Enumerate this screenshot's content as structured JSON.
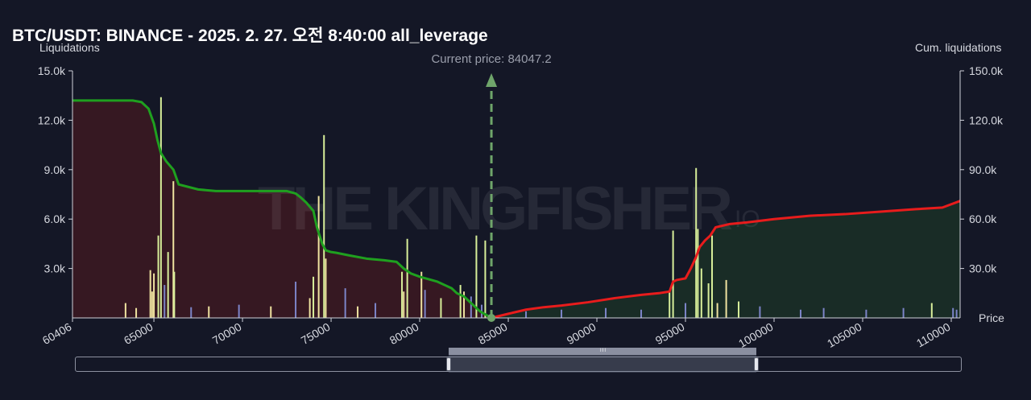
{
  "chart_title": "BTC/USDT: BINANCE - 2025. 2. 27. 오전 8:40:00 all_leverage",
  "watermark": "THE KINGFISHER",
  "watermark_suffix": "IO",
  "colors": {
    "background": "#141726",
    "cum_short": "#1fa01f",
    "cum_long": "#e81c1c",
    "area_left": "#3a1822",
    "area_right": "#1a2f27",
    "bars_light": "#d8ef9a",
    "bars_yellow": "#efe3a0",
    "bars_purple": "#7c84c8",
    "current_price_line": "#6fa56a"
  },
  "chart_data": {
    "type": "bar+line",
    "xlabel": "Price",
    "ylabel_left": "Liquidations",
    "ylabel_right": "Cum. liquidations",
    "xlim": [
      60406,
      110500
    ],
    "ylim_left": [
      0,
      15000
    ],
    "ylim_right": [
      0,
      150000
    ],
    "x_tick_labels": [
      "60406",
      "65000",
      "70000",
      "75000",
      "80000",
      "85000",
      "90000",
      "95000",
      "100000",
      "105000",
      "110000"
    ],
    "x_ticks": [
      60406,
      65000,
      70000,
      75000,
      80000,
      85000,
      90000,
      95000,
      100000,
      105000,
      110000
    ],
    "y_left_tick_labels": [
      "3.0k",
      "6.0k",
      "9.0k",
      "12.0k",
      "15.0k"
    ],
    "y_left_ticks": [
      3000,
      6000,
      9000,
      12000,
      15000
    ],
    "y_right_tick_labels": [
      "30.0k",
      "60.0k",
      "90.0k",
      "120.0k",
      "150.0k"
    ],
    "y_right_ticks": [
      30000,
      60000,
      90000,
      120000,
      150000
    ],
    "current_price": 84047.2,
    "current_price_label": "Current price: 84047.2",
    "grid": false,
    "bars": [
      {
        "x": 65400,
        "y": 13400,
        "c": "light"
      },
      {
        "x": 65250,
        "y": 5000,
        "c": "light"
      },
      {
        "x": 64800,
        "y": 2900,
        "c": "yellow"
      },
      {
        "x": 65000,
        "y": 2700,
        "c": "yellow"
      },
      {
        "x": 64900,
        "y": 1600,
        "c": "yellow"
      },
      {
        "x": 65600,
        "y": 2000,
        "c": "purple"
      },
      {
        "x": 66100,
        "y": 8300,
        "c": "yellow"
      },
      {
        "x": 66150,
        "y": 2800,
        "c": "light"
      },
      {
        "x": 65800,
        "y": 4000,
        "c": "light"
      },
      {
        "x": 63400,
        "y": 900,
        "c": "yellow"
      },
      {
        "x": 64000,
        "y": 600,
        "c": "yellow"
      },
      {
        "x": 67100,
        "y": 650,
        "c": "purple"
      },
      {
        "x": 68100,
        "y": 700,
        "c": "yellow"
      },
      {
        "x": 69800,
        "y": 800,
        "c": "purple"
      },
      {
        "x": 71600,
        "y": 700,
        "c": "yellow"
      },
      {
        "x": 73000,
        "y": 2200,
        "c": "purple"
      },
      {
        "x": 74000,
        "y": 2500,
        "c": "light"
      },
      {
        "x": 74300,
        "y": 7400,
        "c": "yellow"
      },
      {
        "x": 74600,
        "y": 11100,
        "c": "light"
      },
      {
        "x": 74700,
        "y": 3600,
        "c": "yellow"
      },
      {
        "x": 73800,
        "y": 1200,
        "c": "yellow"
      },
      {
        "x": 75800,
        "y": 1800,
        "c": "purple"
      },
      {
        "x": 76500,
        "y": 700,
        "c": "yellow"
      },
      {
        "x": 77500,
        "y": 900,
        "c": "purple"
      },
      {
        "x": 79000,
        "y": 2800,
        "c": "light"
      },
      {
        "x": 79300,
        "y": 4800,
        "c": "light"
      },
      {
        "x": 79100,
        "y": 1600,
        "c": "yellow"
      },
      {
        "x": 80100,
        "y": 2800,
        "c": "yellow"
      },
      {
        "x": 80300,
        "y": 1700,
        "c": "purple"
      },
      {
        "x": 81200,
        "y": 1200,
        "c": "light"
      },
      {
        "x": 82300,
        "y": 2000,
        "c": "light"
      },
      {
        "x": 82500,
        "y": 1600,
        "c": "yellow"
      },
      {
        "x": 83200,
        "y": 5000,
        "c": "light"
      },
      {
        "x": 82900,
        "y": 1300,
        "c": "purple"
      },
      {
        "x": 83700,
        "y": 4700,
        "c": "light"
      },
      {
        "x": 83500,
        "y": 800,
        "c": "purple"
      },
      {
        "x": 86000,
        "y": 400,
        "c": "purple"
      },
      {
        "x": 88000,
        "y": 500,
        "c": "purple"
      },
      {
        "x": 90500,
        "y": 600,
        "c": "purple"
      },
      {
        "x": 92500,
        "y": 500,
        "c": "purple"
      },
      {
        "x": 94300,
        "y": 5300,
        "c": "light"
      },
      {
        "x": 94100,
        "y": 1600,
        "c": "light"
      },
      {
        "x": 95000,
        "y": 900,
        "c": "purple"
      },
      {
        "x": 95600,
        "y": 9100,
        "c": "light"
      },
      {
        "x": 95700,
        "y": 5400,
        "c": "light"
      },
      {
        "x": 95900,
        "y": 3000,
        "c": "light"
      },
      {
        "x": 96300,
        "y": 2100,
        "c": "light"
      },
      {
        "x": 96500,
        "y": 5000,
        "c": "light"
      },
      {
        "x": 97300,
        "y": 2300,
        "c": "yellow"
      },
      {
        "x": 96800,
        "y": 900,
        "c": "yellow"
      },
      {
        "x": 98000,
        "y": 1000,
        "c": "light"
      },
      {
        "x": 99200,
        "y": 700,
        "c": "purple"
      },
      {
        "x": 101500,
        "y": 500,
        "c": "purple"
      },
      {
        "x": 102800,
        "y": 600,
        "c": "purple"
      },
      {
        "x": 105200,
        "y": 500,
        "c": "purple"
      },
      {
        "x": 107300,
        "y": 600,
        "c": "purple"
      },
      {
        "x": 108900,
        "y": 900,
        "c": "light"
      },
      {
        "x": 110100,
        "y": 600,
        "c": "purple"
      },
      {
        "x": 110300,
        "y": 500,
        "c": "purple"
      }
    ],
    "series": [
      {
        "name": "",
        "side": "short",
        "x": [
          60406,
          63800,
          64300,
          64700,
          65000,
          65200,
          65400,
          65700,
          66100,
          66400,
          67500,
          68500,
          70000,
          72500,
          73000,
          73300,
          73600,
          74000,
          74200,
          74500,
          74700,
          75000,
          75300,
          76000,
          77000,
          78000,
          78700,
          79100,
          79500,
          80000,
          81000,
          81400,
          81800,
          82100,
          82500,
          83000,
          83400,
          84047
        ],
        "y": [
          132000,
          132000,
          131000,
          127000,
          118000,
          108000,
          100000,
          95000,
          90000,
          81000,
          78000,
          77000,
          77000,
          77000,
          75500,
          73000,
          70000,
          65000,
          55000,
          45000,
          41000,
          40000,
          39500,
          38000,
          36000,
          35000,
          34000,
          30000,
          27000,
          25000,
          22000,
          20000,
          18000,
          15000,
          13000,
          8000,
          4000,
          0
        ]
      },
      {
        "name": "",
        "side": "long",
        "x": [
          84047,
          85000,
          86000,
          87000,
          88000,
          89500,
          91000,
          92500,
          93500,
          94100,
          94300,
          94500,
          95000,
          95300,
          95600,
          95800,
          96100,
          96400,
          96700,
          97500,
          98500,
          100000,
          102000,
          104000,
          106000,
          108000,
          109500,
          110500
        ],
        "y": [
          0,
          2500,
          5000,
          6500,
          7500,
          9500,
          12000,
          14000,
          15000,
          16000,
          22000,
          23000,
          24000,
          30000,
          37000,
          43000,
          47000,
          50000,
          55000,
          57000,
          58000,
          60000,
          62000,
          63000,
          64500,
          66000,
          67000,
          71000
        ]
      }
    ]
  },
  "slider": {
    "grip_label": "III"
  }
}
